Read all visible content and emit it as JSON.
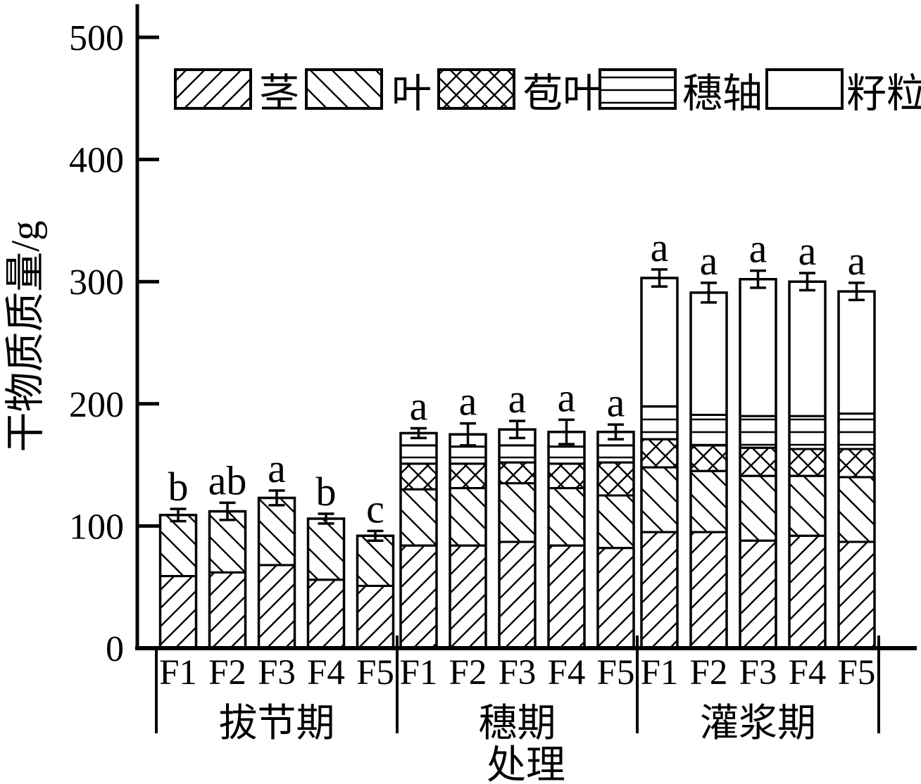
{
  "colors": {
    "foreground": "#000000",
    "background": "#ffffff"
  },
  "chart_data": {
    "type": "bar",
    "subtype": "stacked-bar-with-error-bars",
    "title": "",
    "ylabel": "干物质质量/g",
    "xlabel": "处理",
    "ylim": [
      0,
      500
    ],
    "yticks": [
      "0",
      "100",
      "200",
      "300",
      "400",
      "500"
    ],
    "grid": false,
    "legend_position": "top-inside",
    "legend": [
      {
        "label": "茎",
        "pattern": "diag-forward"
      },
      {
        "label": "叶",
        "pattern": "diag-back"
      },
      {
        "label": "苞叶",
        "pattern": "cross"
      },
      {
        "label": "穗轴",
        "pattern": "horizontal"
      },
      {
        "label": "籽粒",
        "pattern": "blank"
      }
    ],
    "series_keys": [
      "stem",
      "leaf",
      "bract",
      "cob",
      "grain"
    ],
    "groups": [
      {
        "label": "拔节期",
        "bars": [
          {
            "treatment": "F1",
            "stem": 59,
            "leaf": 50,
            "bract": 0,
            "cob": 0,
            "grain": 0,
            "total": 109,
            "error": 5,
            "letter": "b"
          },
          {
            "treatment": "F2",
            "stem": 62,
            "leaf": 50,
            "bract": 0,
            "cob": 0,
            "grain": 0,
            "total": 112,
            "error": 7,
            "letter": "ab"
          },
          {
            "treatment": "F3",
            "stem": 68,
            "leaf": 55,
            "bract": 0,
            "cob": 0,
            "grain": 0,
            "total": 123,
            "error": 6,
            "letter": "a"
          },
          {
            "treatment": "F4",
            "stem": 56,
            "leaf": 50,
            "bract": 0,
            "cob": 0,
            "grain": 0,
            "total": 106,
            "error": 4,
            "letter": "b"
          },
          {
            "treatment": "F5",
            "stem": 51,
            "leaf": 41,
            "bract": 0,
            "cob": 0,
            "grain": 0,
            "total": 92,
            "error": 4,
            "letter": "c"
          }
        ]
      },
      {
        "label": "穗期",
        "bars": [
          {
            "treatment": "F1",
            "stem": 84,
            "leaf": 46,
            "bract": 21,
            "cob": 15,
            "grain": 10,
            "total": 176,
            "error": 4,
            "letter": "a"
          },
          {
            "treatment": "F2",
            "stem": 84,
            "leaf": 47,
            "bract": 20,
            "cob": 14,
            "grain": 10,
            "total": 175,
            "error": 9,
            "letter": "a"
          },
          {
            "treatment": "F3",
            "stem": 87,
            "leaf": 48,
            "bract": 17,
            "cob": 14,
            "grain": 13,
            "total": 179,
            "error": 7,
            "letter": "a"
          },
          {
            "treatment": "F4",
            "stem": 84,
            "leaf": 47,
            "bract": 20,
            "cob": 14,
            "grain": 12,
            "total": 177,
            "error": 10,
            "letter": "a"
          },
          {
            "treatment": "F5",
            "stem": 82,
            "leaf": 43,
            "bract": 27,
            "cob": 14,
            "grain": 11,
            "total": 177,
            "error": 6,
            "letter": "a"
          }
        ]
      },
      {
        "label": "灌浆期",
        "bars": [
          {
            "treatment": "F1",
            "stem": 95,
            "leaf": 53,
            "bract": 23,
            "cob": 27,
            "grain": 105,
            "total": 303,
            "error": 7,
            "letter": "a"
          },
          {
            "treatment": "F2",
            "stem": 95,
            "leaf": 50,
            "bract": 21,
            "cob": 25,
            "grain": 100,
            "total": 291,
            "error": 8,
            "letter": "a"
          },
          {
            "treatment": "F3",
            "stem": 88,
            "leaf": 53,
            "bract": 23,
            "cob": 26,
            "grain": 112,
            "total": 302,
            "error": 7,
            "letter": "a"
          },
          {
            "treatment": "F4",
            "stem": 92,
            "leaf": 49,
            "bract": 22,
            "cob": 27,
            "grain": 110,
            "total": 300,
            "error": 7,
            "letter": "a"
          },
          {
            "treatment": "F5",
            "stem": 87,
            "leaf": 53,
            "bract": 23,
            "cob": 29,
            "grain": 100,
            "total": 292,
            "error": 7,
            "letter": "a"
          }
        ]
      }
    ]
  }
}
